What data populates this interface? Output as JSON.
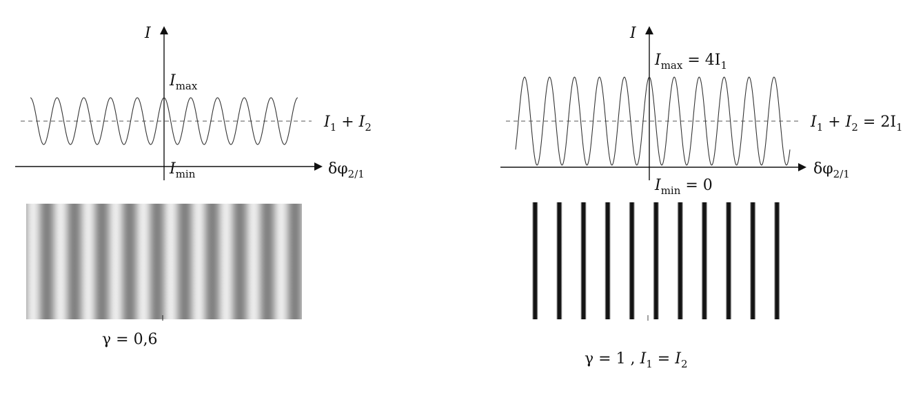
{
  "panels": [
    {
      "id": "left",
      "axis_y_label": "I",
      "imax_label": {
        "sym": "I",
        "sub": "max",
        "rhs": ""
      },
      "imin_label": {
        "sym": "I",
        "sub": "min",
        "rhs": ""
      },
      "mean_label": {
        "a": "I",
        "a_sub": "1",
        "op": " + ",
        "b": "I",
        "b_sub": "2",
        "rhs": ""
      },
      "x_label": {
        "sym": "δφ",
        "sub": "2/1"
      },
      "gamma_caption": "γ = 0,6",
      "caption_extra": "",
      "visibility": 0.6,
      "periods": 10
    },
    {
      "id": "right",
      "axis_y_label": "I",
      "imax_label": {
        "sym": "I",
        "sub": "max",
        "rhs": " = 4I",
        "rhs_sub": "1"
      },
      "imin_label": {
        "sym": "I",
        "sub": "min",
        "rhs": " = 0"
      },
      "mean_label": {
        "a": "I",
        "a_sub": "1",
        "op": " + ",
        "b": "I",
        "b_sub": "2",
        "rhs": " = 2I",
        "rhs_sub": "1"
      },
      "x_label": {
        "sym": "δφ",
        "sub": "2/1"
      },
      "gamma_caption": "γ = 1 ,",
      "caption_extra": {
        "a": "I",
        "a_sub": "1",
        "op": " = ",
        "b": "I",
        "b_sub": "2"
      },
      "visibility": 1.0,
      "periods": 11
    }
  ],
  "colors": {
    "ink": "#111111",
    "curve": "#333333",
    "dash": "#555555"
  }
}
